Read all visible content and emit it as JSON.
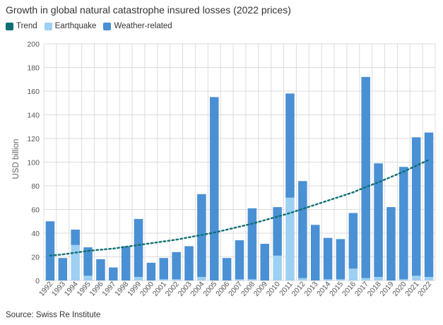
{
  "header": {
    "title": "Growth in global natural catastrophe insured losses (2022 prices)"
  },
  "footer": {
    "source": "Source: Swiss Re Institute"
  },
  "colors": {
    "trend": "#0e6f73",
    "earthquake": "#9dd0f2",
    "weather": "#4a90d4",
    "grid": "#dcdcdc"
  },
  "chart_data": {
    "type": "bar",
    "stacked": true,
    "ylabel": "USD billion",
    "ylim": [
      0,
      200
    ],
    "yticks": [
      0,
      20,
      40,
      60,
      80,
      100,
      120,
      140,
      160,
      180,
      200
    ],
    "grid": true,
    "legend_position": "top-left",
    "categories": [
      "1992",
      "1993",
      "1994",
      "1995",
      "1996",
      "1997",
      "1998",
      "1999",
      "2000",
      "2001",
      "2002",
      "2003",
      "2004",
      "2005",
      "2006",
      "2007",
      "2008",
      "2009",
      "2010",
      "2011",
      "2012",
      "2013",
      "2014",
      "2015",
      "2016",
      "2017",
      "2018",
      "2019",
      "2020",
      "2021",
      "2022"
    ],
    "series": [
      {
        "name": "Earthquake",
        "color_key": "earthquake",
        "values": [
          0,
          0,
          30,
          4,
          0,
          0,
          0,
          3,
          0,
          1,
          1,
          0,
          3,
          0,
          0,
          1,
          1,
          0,
          21,
          70,
          2,
          0,
          1,
          1,
          10,
          2,
          3,
          0,
          1,
          4,
          3
        ]
      },
      {
        "name": "Weather-related",
        "color_key": "weather",
        "values": [
          50,
          19,
          13,
          24,
          18,
          11,
          29,
          49,
          15,
          18,
          23,
          29,
          70,
          155,
          19,
          33,
          60,
          31,
          41,
          88,
          82,
          47,
          35,
          34,
          47,
          170,
          96,
          62,
          95,
          117,
          122
        ]
      },
      {
        "name": "Trend",
        "type": "line",
        "style": "dotted",
        "color_key": "trend",
        "values": [
          21,
          22,
          23.5,
          25,
          26,
          27,
          28.5,
          30,
          31.5,
          33,
          34.5,
          36.5,
          38.5,
          40.5,
          43,
          45.5,
          48,
          51,
          54,
          57,
          60.5,
          64,
          67.5,
          71,
          74.5,
          79,
          83,
          87.5,
          92,
          97,
          102
        ]
      }
    ],
    "legend": [
      "Trend",
      "Earthquake",
      "Weather-related"
    ]
  }
}
